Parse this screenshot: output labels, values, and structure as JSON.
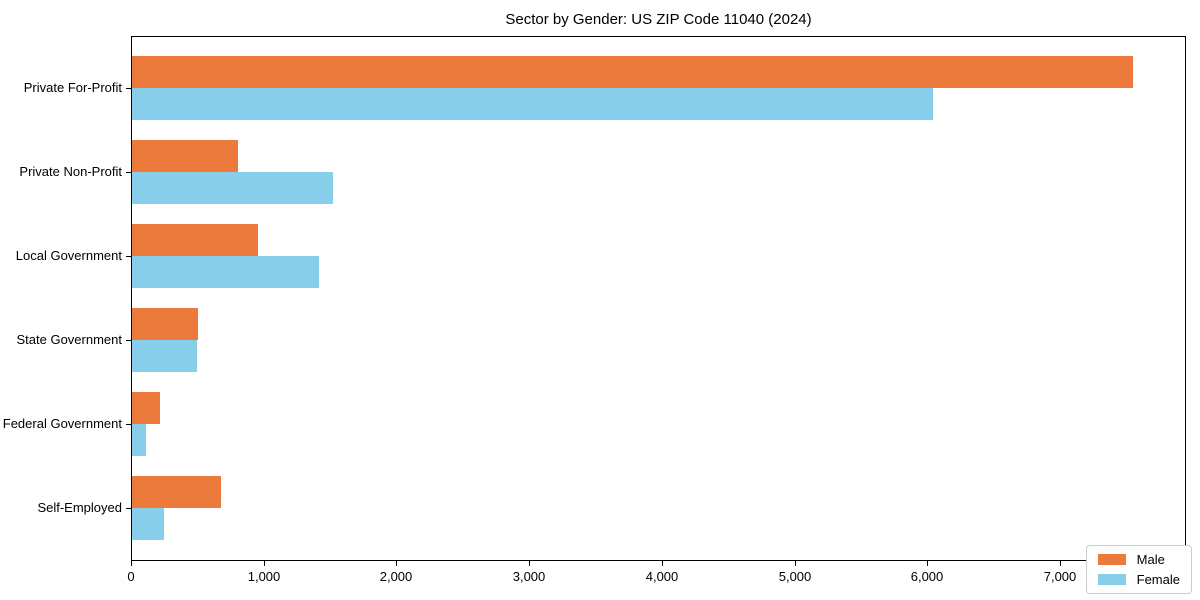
{
  "figure": {
    "background": "#ffffff",
    "spine_color": "#000000"
  },
  "chart_data": {
    "type": "bar",
    "orientation": "horizontal",
    "title": "Sector by Gender: US ZIP Code 11040 (2024)",
    "categories": [
      "Private For-Profit",
      "Private Non-Profit",
      "Local Government",
      "State Government",
      "Federal Government",
      "Self-Employed"
    ],
    "series": [
      {
        "name": "Male",
        "color": "#ec7a3d",
        "values": [
          7560,
          800,
          950,
          500,
          210,
          670
        ]
      },
      {
        "name": "Female",
        "color": "#87ceeb",
        "values": [
          6050,
          1515,
          1410,
          490,
          105,
          240
        ]
      }
    ],
    "xlabel": "",
    "ylabel": "",
    "xlim": [
      0,
      7950
    ],
    "xticks": [
      0,
      1000,
      2000,
      3000,
      4000,
      5000,
      6000,
      7000
    ],
    "xtick_labels": [
      "0",
      "1,000",
      "2,000",
      "3,000",
      "4,000",
      "5,000",
      "6,000",
      "7,000"
    ],
    "grid": false,
    "legend": {
      "position": "lower right",
      "entries": [
        "Male",
        "Female"
      ]
    }
  }
}
